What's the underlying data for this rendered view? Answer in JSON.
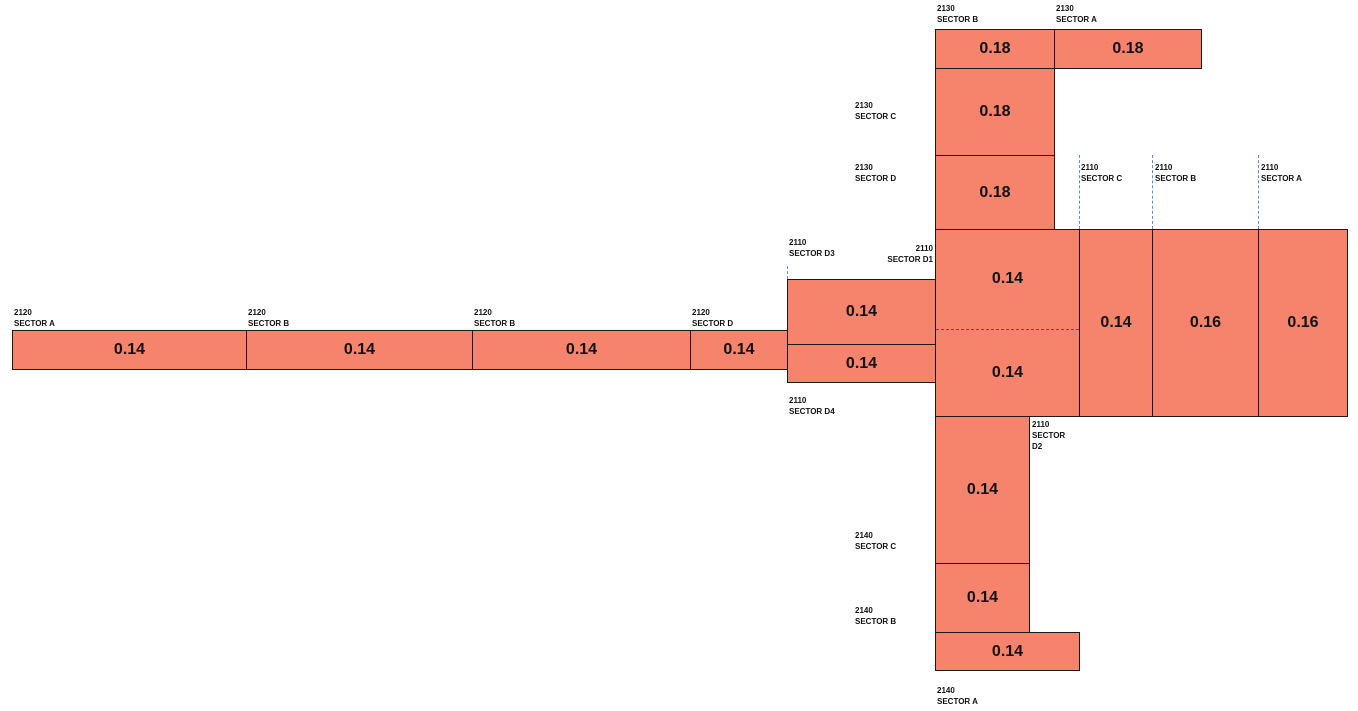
{
  "colors": {
    "fill": "#f6836b",
    "stroke": "#1a1a1a",
    "marker": "#5b8fd4"
  },
  "blocks": {
    "b2120a": "0.14",
    "b2120b1": "0.14",
    "b2120b2": "0.14",
    "b2120d": "0.14",
    "b2110d3": "0.14",
    "b2110d4": "0.14",
    "b2110d1top": "0.14",
    "b2110d1bot": "0.14",
    "b2110c": "0.14",
    "b2110b": "0.16",
    "b2110a": "0.16",
    "b2130b": "0.18",
    "b2130a": "0.18",
    "b2130c": "0.18",
    "b2130d": "0.18",
    "b2140c": "0.14",
    "b2140b": "0.14",
    "b2140a": "0.14"
  },
  "labels": {
    "l2120a": {
      "line1": "2120",
      "line2": "SECTOR A"
    },
    "l2120b1": {
      "line1": "2120",
      "line2": "SECTOR B"
    },
    "l2120b2": {
      "line1": "2120",
      "line2": "SECTOR B"
    },
    "l2120d": {
      "line1": "2120",
      "line2": "SECTOR D"
    },
    "l2110d3": {
      "line1": "2110",
      "line2": "SECTOR D3"
    },
    "l2110d1": {
      "line1": "2110",
      "line2": "SECTOR D1"
    },
    "l2110d4": {
      "line1": "2110",
      "line2": "SECTOR D4"
    },
    "l2110c": {
      "line1": "2110",
      "line2": "SECTOR C"
    },
    "l2110b": {
      "line1": "2110",
      "line2": "SECTOR B"
    },
    "l2110a": {
      "line1": "2110",
      "line2": "SECTOR A"
    },
    "l2110d2": {
      "line1": "2110",
      "line2": "SECTOR",
      "line3": "D2"
    },
    "l2130b": {
      "line1": "2130",
      "line2": "SECTOR B"
    },
    "l2130a": {
      "line1": "2130",
      "line2": "SECTOR A"
    },
    "l2130c": {
      "line1": "2130",
      "line2": "SECTOR C"
    },
    "l2130d": {
      "line1": "2130",
      "line2": "SECTOR D"
    },
    "l2140c": {
      "line1": "2140",
      "line2": "SECTOR C"
    },
    "l2140b": {
      "line1": "2140",
      "line2": "SECTOR B"
    },
    "l2140a": {
      "line1": "2140",
      "line2": "SECTOR A"
    }
  }
}
